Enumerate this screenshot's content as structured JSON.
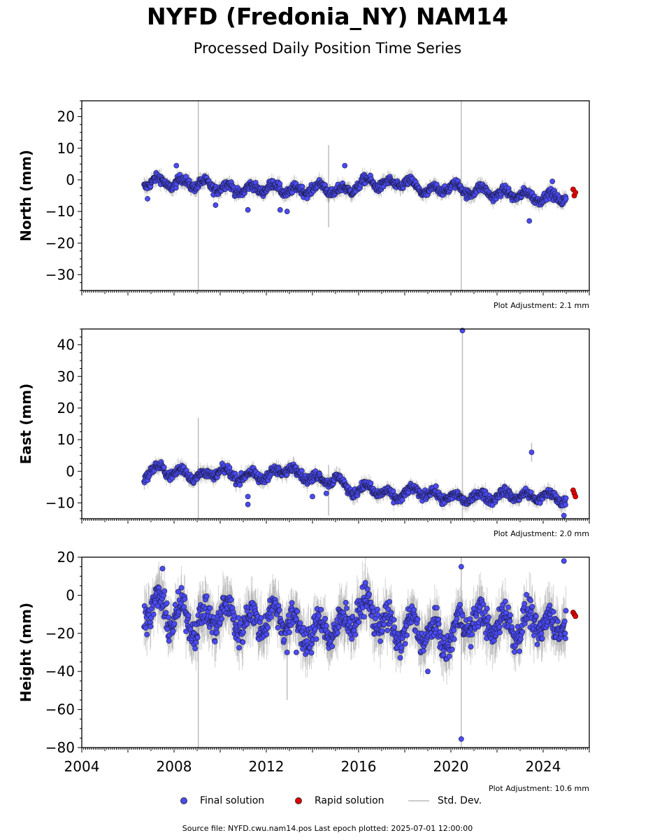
{
  "title": "NYFD (Fredonia_NY) NAM14",
  "subtitle": "Processed Daily Position Time Series",
  "footer": "Source file: NYFD.cwu.nam14.pos  Last epoch plotted: 2025-07-01 12:00:00",
  "legend": {
    "final": "Final solution",
    "rapid": "Rapid solution",
    "std": "Std. Dev."
  },
  "colors": {
    "final": "#4b4bf5",
    "rapid": "#e00000",
    "std": "#bdbdbd"
  },
  "chart_data": [
    {
      "type": "scatter",
      "ylabel": "North (mm)",
      "ylim": [
        -35,
        25
      ],
      "yticks": [
        20,
        10,
        0,
        -10,
        -20,
        -30
      ],
      "xlim": [
        2004,
        2026
      ],
      "adjustment_label": "Plot Adjustment: 2.1 mm",
      "x_tick_labels": false,
      "series": [
        {
          "name": "Final solution",
          "x": [
            2006.7,
            2007.0,
            2007.5,
            2008.0,
            2008.5,
            2009.0,
            2009.5,
            2010.0,
            2010.5,
            2011.0,
            2011.5,
            2012.0,
            2012.5,
            2013.0,
            2013.5,
            2014.0,
            2014.5,
            2015.0,
            2015.5,
            2016.0,
            2016.5,
            2017.0,
            2017.5,
            2018.0,
            2018.5,
            2019.0,
            2019.5,
            2020.0,
            2020.5,
            2021.0,
            2021.5,
            2022.0,
            2022.5,
            2023.0,
            2023.5,
            2024.0,
            2024.5,
            2025.0
          ],
          "y": [
            -1,
            -1,
            0,
            -2,
            0,
            -2,
            -1,
            -3,
            -2,
            -4,
            -2,
            -3,
            -2,
            -4,
            -3,
            -3,
            -2,
            -4,
            -3,
            -2,
            0,
            -2,
            -1,
            -1,
            -2,
            -4,
            -3,
            -2,
            -3,
            -4,
            -3,
            -5,
            -4,
            -5,
            -5,
            -6,
            -5,
            -6
          ]
        },
        {
          "name": "Rapid solution",
          "x": [
            2025.3,
            2025.35,
            2025.4
          ],
          "y": [
            -3,
            -5,
            -4
          ]
        }
      ],
      "outliers": [
        {
          "x": 2006.85,
          "y": -6
        },
        {
          "x": 2008.1,
          "y": 4.5
        },
        {
          "x": 2009.8,
          "y": -8
        },
        {
          "x": 2011.2,
          "y": -9.5
        },
        {
          "x": 2012.6,
          "y": -9.5
        },
        {
          "x": 2012.9,
          "y": -10
        },
        {
          "x": 2015.4,
          "y": 4.5
        },
        {
          "x": 2023.4,
          "y": -13
        },
        {
          "x": 2024.4,
          "y": -0.5
        }
      ],
      "stddev_spikes": [
        {
          "x": 2009.05,
          "lo": -35,
          "hi": 25
        },
        {
          "x": 2020.45,
          "lo": -35,
          "hi": 25
        },
        {
          "x": 2014.7,
          "lo": -15,
          "hi": 11
        }
      ]
    },
    {
      "type": "scatter",
      "ylabel": "East (mm)",
      "ylim": [
        -15,
        45
      ],
      "yticks": [
        40,
        30,
        20,
        10,
        0,
        -10
      ],
      "xlim": [
        2004,
        2026
      ],
      "adjustment_label": "Plot Adjustment: 2.0 mm",
      "x_tick_labels": false,
      "series": [
        {
          "name": "Final solution",
          "x": [
            2006.7,
            2007.0,
            2007.5,
            2008.0,
            2008.5,
            2009.0,
            2009.5,
            2010.0,
            2010.5,
            2011.0,
            2011.5,
            2012.0,
            2012.5,
            2013.0,
            2013.5,
            2014.0,
            2014.5,
            2015.0,
            2015.3,
            2015.6,
            2016.0,
            2016.5,
            2017.0,
            2017.5,
            2018.0,
            2018.5,
            2019.0,
            2019.5,
            2020.0,
            2020.5,
            2021.0,
            2021.5,
            2022.0,
            2022.5,
            2023.0,
            2023.5,
            2024.0,
            2024.5,
            2025.0
          ],
          "y": [
            -1,
            0,
            1,
            -1,
            0,
            -2,
            -1,
            0,
            -1,
            -2,
            -1,
            -2,
            0,
            1,
            -1,
            -2,
            -3,
            -2,
            -4,
            -6,
            -6,
            -5,
            -7,
            -8,
            -7,
            -6,
            -7,
            -8,
            -8,
            -9,
            -8,
            -8,
            -8,
            -7,
            -8,
            -8,
            -8,
            -8,
            -9
          ]
        },
        {
          "name": "Rapid solution",
          "x": [
            2025.3,
            2025.35,
            2025.4
          ],
          "y": [
            -6,
            -7,
            -8
          ]
        }
      ],
      "outliers": [
        {
          "x": 2011.2,
          "y": -10.5
        },
        {
          "x": 2011.2,
          "y": -8
        },
        {
          "x": 2014.0,
          "y": -8
        },
        {
          "x": 2014.6,
          "y": -7
        },
        {
          "x": 2020.5,
          "y": 44.5
        },
        {
          "x": 2023.5,
          "y": 6
        },
        {
          "x": 2024.9,
          "y": -14
        }
      ],
      "stddev_spikes": [
        {
          "x": 2009.05,
          "lo": -15,
          "hi": 17
        },
        {
          "x": 2020.5,
          "lo": -15,
          "hi": 45
        },
        {
          "x": 2014.7,
          "lo": -14,
          "hi": 2
        },
        {
          "x": 2023.5,
          "lo": 3,
          "hi": 9
        }
      ]
    },
    {
      "type": "scatter",
      "ylabel": "Height (mm)",
      "ylim": [
        -80,
        20
      ],
      "yticks": [
        20,
        0,
        -20,
        -40,
        -60,
        -80
      ],
      "xlim": [
        2004,
        2026
      ],
      "xticks": [
        2004,
        2008,
        2012,
        2016,
        2020,
        2024
      ],
      "adjustment_label": "Plot Adjustment: 10.6 mm",
      "x_tick_labels": true,
      "series": [
        {
          "name": "Final solution",
          "x": [
            2006.7,
            2007.0,
            2007.5,
            2008.0,
            2008.5,
            2009.0,
            2009.5,
            2010.0,
            2010.5,
            2011.0,
            2011.5,
            2012.0,
            2012.5,
            2013.0,
            2013.5,
            2014.0,
            2014.5,
            2015.0,
            2015.5,
            2016.0,
            2016.5,
            2017.0,
            2017.5,
            2018.0,
            2018.5,
            2019.0,
            2019.5,
            2020.0,
            2020.5,
            2021.0,
            2021.5,
            2022.0,
            2022.5,
            2023.0,
            2023.5,
            2024.0,
            2024.5,
            2025.0
          ],
          "y": [
            -2,
            -10,
            -3,
            -15,
            -8,
            -18,
            -10,
            -12,
            -8,
            -18,
            -10,
            -15,
            -8,
            -15,
            -18,
            -22,
            -15,
            -20,
            -12,
            -10,
            -5,
            -15,
            -18,
            -20,
            -15,
            -22,
            -20,
            -25,
            -12,
            -15,
            -12,
            -18,
            -12,
            -20,
            -10,
            -18,
            -15,
            -12
          ]
        },
        {
          "name": "Rapid solution",
          "x": [
            2025.3,
            2025.35,
            2025.4
          ],
          "y": [
            -9,
            -10,
            -11
          ]
        }
      ],
      "outliers": [
        {
          "x": 2020.45,
          "y": -75.5
        },
        {
          "x": 2020.45,
          "y": 15
        },
        {
          "x": 2024.9,
          "y": 18
        },
        {
          "x": 2019.0,
          "y": -40
        },
        {
          "x": 2013.3,
          "y": -30
        },
        {
          "x": 2007.5,
          "y": 14
        },
        {
          "x": 2012.9,
          "y": -30
        }
      ],
      "stddev_spikes": [
        {
          "x": 2009.05,
          "lo": -80,
          "hi": 0
        },
        {
          "x": 2020.45,
          "lo": -80,
          "hi": 20
        },
        {
          "x": 2012.9,
          "lo": -55,
          "hi": -10
        }
      ]
    }
  ]
}
